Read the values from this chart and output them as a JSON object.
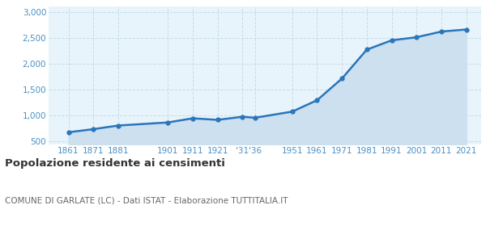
{
  "years": [
    1861,
    1871,
    1881,
    1901,
    1911,
    1921,
    1931,
    1936,
    1951,
    1961,
    1971,
    1981,
    1991,
    2001,
    2011,
    2021
  ],
  "population": [
    670,
    730,
    800,
    860,
    940,
    910,
    970,
    950,
    1070,
    1290,
    1710,
    2270,
    2450,
    2510,
    2620,
    2660
  ],
  "line_color": "#2a75bb",
  "fill_color": "#cce0f0",
  "marker_color": "#2a75bb",
  "bg_color": "#e8f4fb",
  "grid_color": "#c8dce8",
  "ylim": [
    430,
    3100
  ],
  "yticks": [
    500,
    1000,
    1500,
    2000,
    2500,
    3000
  ],
  "title": "Popolazione residente ai censimenti",
  "subtitle": "COMUNE DI GARLATE (LC) - Dati ISTAT - Elaborazione TUTTITALIA.IT",
  "title_color": "#333333",
  "subtitle_color": "#666666",
  "axis_label_color": "#4a90c4",
  "xlim_left": 1853,
  "xlim_right": 2027
}
